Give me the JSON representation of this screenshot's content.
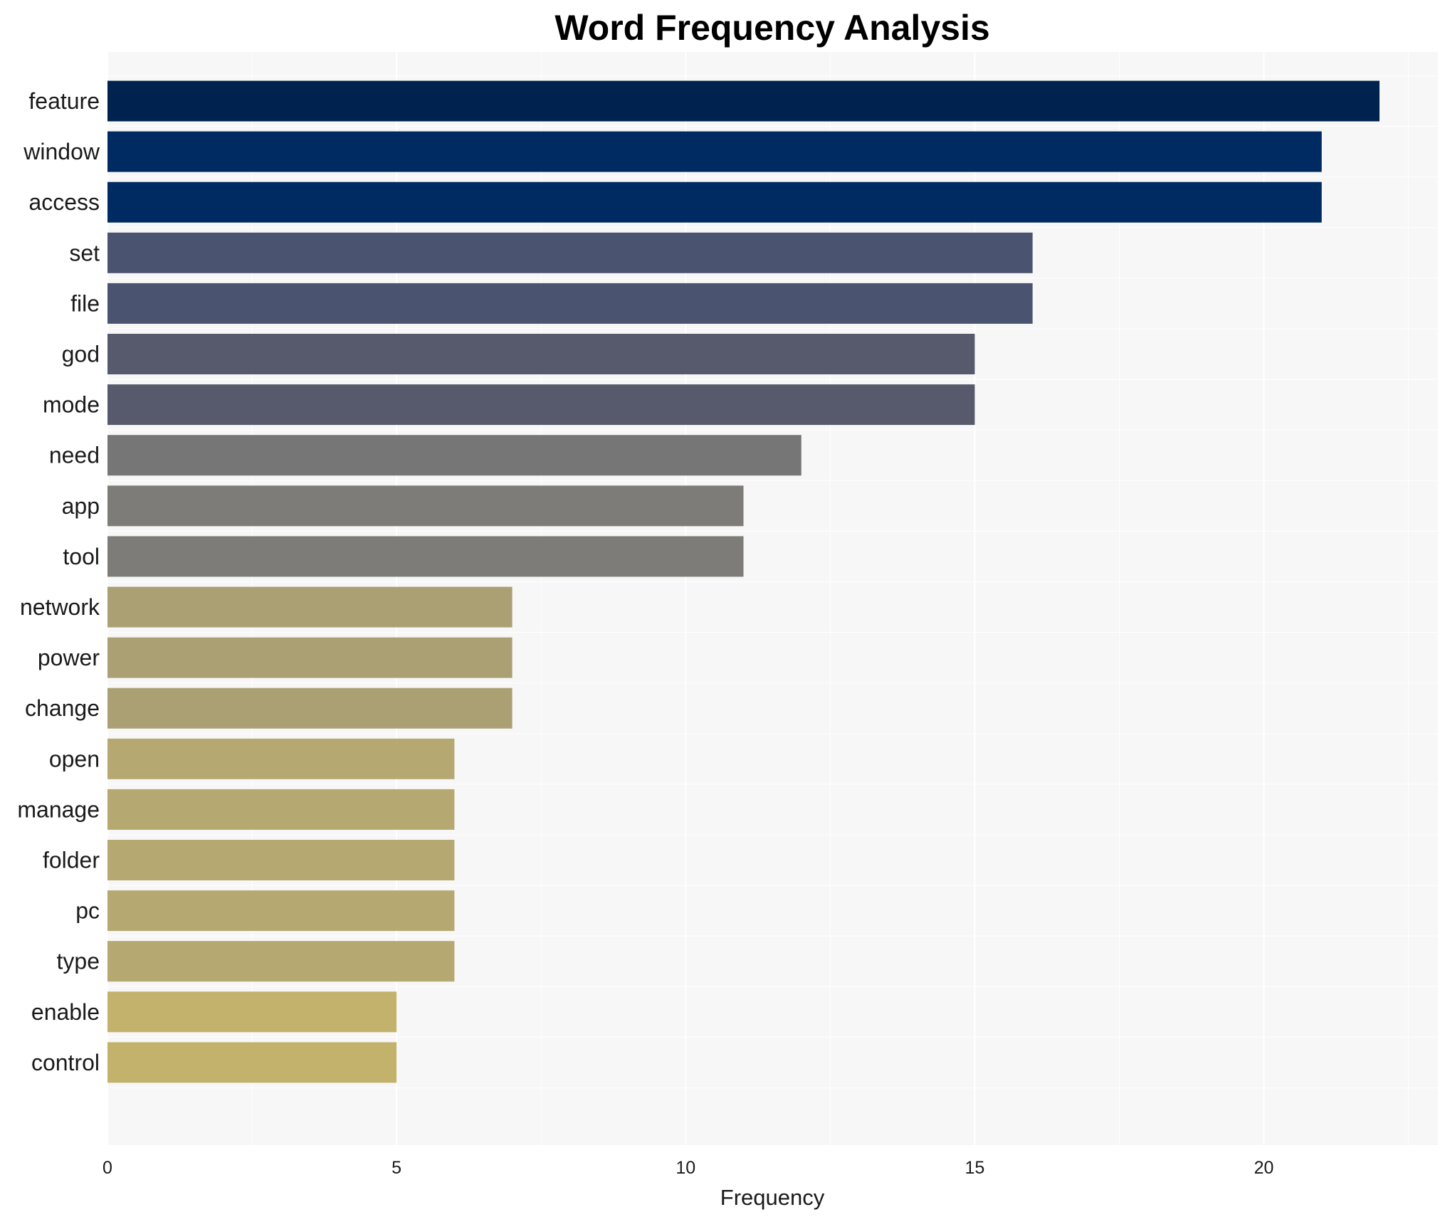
{
  "chart_data": {
    "type": "bar",
    "orientation": "horizontal",
    "title": "Word Frequency Analysis",
    "xlabel": "Frequency",
    "ylabel": "",
    "xlim": [
      0,
      23.1
    ],
    "xticks": [
      0,
      5,
      10,
      15,
      20
    ],
    "grid": true,
    "legend": "none",
    "categories": [
      "feature",
      "window",
      "access",
      "set",
      "file",
      "god",
      "mode",
      "need",
      "app",
      "tool",
      "network",
      "power",
      "change",
      "open",
      "manage",
      "folder",
      "pc",
      "type",
      "enable",
      "control"
    ],
    "values": [
      22,
      21,
      21,
      16,
      16,
      15,
      15,
      12,
      11,
      11,
      7,
      7,
      7,
      6,
      6,
      6,
      6,
      6,
      5,
      5
    ],
    "colors": [
      "#00224e",
      "#002a62",
      "#002a62",
      "#4a536f",
      "#4a536f",
      "#575a6c",
      "#575a6c",
      "#767676",
      "#7d7c78",
      "#7d7c78",
      "#aba074",
      "#aba074",
      "#aba074",
      "#b5a971",
      "#b5a971",
      "#b5a971",
      "#b5a971",
      "#b5a971",
      "#c2b26b",
      "#c2b26b"
    ],
    "background_color": "#f7f7f8",
    "grid_color": "#ffffff"
  }
}
